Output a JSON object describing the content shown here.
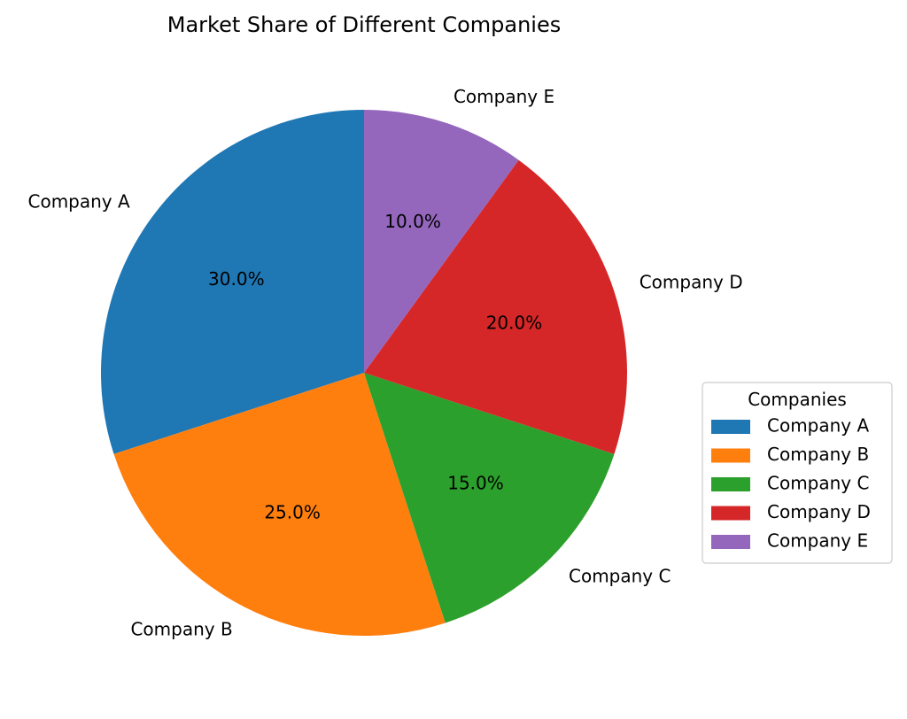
{
  "chart_data": {
    "type": "pie",
    "title": "Market Share of Different Companies",
    "categories": [
      "Company A",
      "Company B",
      "Company C",
      "Company D",
      "Company E"
    ],
    "values": [
      30,
      25,
      15,
      20,
      10
    ],
    "percent_labels": [
      "30.0%",
      "25.0%",
      "15.0%",
      "20.0%",
      "10.0%"
    ],
    "colors": [
      "#1f77b4",
      "#ff7f0e",
      "#2ca02c",
      "#d62728",
      "#9467bd"
    ],
    "start_angle": 90,
    "direction": "counterclockwise",
    "legend": {
      "title": "Companies",
      "placement": "center-right"
    }
  }
}
